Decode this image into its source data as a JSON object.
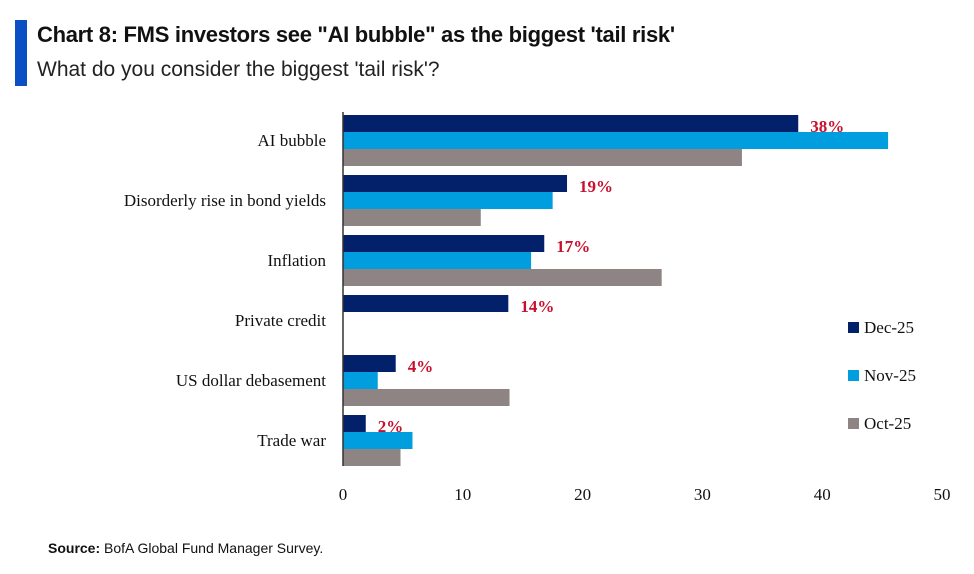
{
  "header": {
    "title": "Chart 8: FMS investors see \"AI bubble\" as the biggest 'tail risk'",
    "subtitle": "What do you consider the biggest 'tail risk'?"
  },
  "source": {
    "label": "Source:",
    "text": "BofA Global Fund Manager Survey."
  },
  "chart_data": {
    "type": "bar",
    "orientation": "horizontal",
    "title": "Chart 8: FMS investors see \"AI bubble\" as the biggest 'tail risk'",
    "subtitle": "What do you consider the biggest 'tail risk'?",
    "categories": [
      "AI bubble",
      "Disorderly rise in bond yields",
      "Inflation",
      "Private credit",
      "US dollar debasement",
      "Trade war"
    ],
    "series": [
      {
        "name": "Dec-25",
        "color": "#03216b",
        "values": [
          38,
          18.7,
          16.8,
          13.8,
          4.4,
          1.9
        ]
      },
      {
        "name": "Nov-25",
        "color": "#009ddf",
        "values": [
          45.5,
          17.5,
          15.7,
          null,
          2.9,
          5.8
        ]
      },
      {
        "name": "Oct-25",
        "color": "#8e8483",
        "values": [
          33.3,
          11.5,
          26.6,
          null,
          13.9,
          4.8
        ]
      }
    ],
    "data_labels": [
      "38%",
      "19%",
      "17%",
      "14%",
      "4%",
      "2%"
    ],
    "label_color": "#c8102e",
    "xlim": [
      0,
      50
    ],
    "xticks": [
      0,
      10,
      20,
      30,
      40,
      50
    ],
    "legend_position": "right",
    "grid": false
  }
}
